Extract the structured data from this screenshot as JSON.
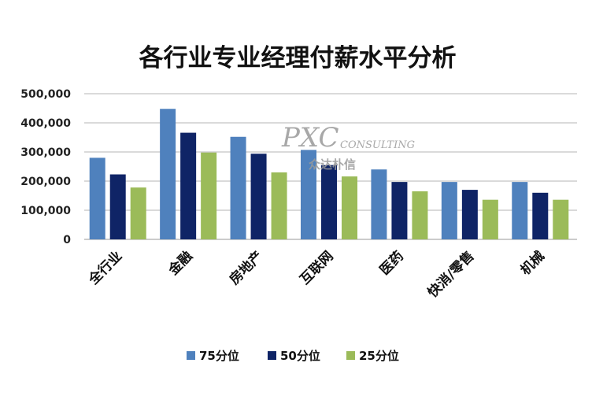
{
  "chart_data": {
    "type": "bar",
    "title": "各行业专业经理付薪水平分析",
    "categories": [
      "全行业",
      "金融",
      "房地产",
      "互联网",
      "医药",
      "快消/零售",
      "机械"
    ],
    "series": [
      {
        "name": "75分位",
        "color": "#4f81bd",
        "values": [
          280000,
          448000,
          352000,
          307000,
          240000,
          197000,
          197000
        ]
      },
      {
        "name": "50分位",
        "color": "#0f2466",
        "values": [
          223000,
          366000,
          294000,
          255000,
          197000,
          170000,
          160000
        ]
      },
      {
        "name": "25分位",
        "color": "#9bbb59",
        "values": [
          178000,
          298000,
          230000,
          216000,
          165000,
          136000,
          136000
        ]
      }
    ],
    "yticks": [
      "500,000",
      "400,000",
      "300,000",
      "200,000",
      "100,000",
      "0"
    ],
    "ylim": [
      0,
      500000
    ],
    "grid": true,
    "legend_position": "bottom"
  },
  "watermark": {
    "brand": "PXC",
    "consulting": "CONSULTING",
    "cn": "众达朴信"
  }
}
